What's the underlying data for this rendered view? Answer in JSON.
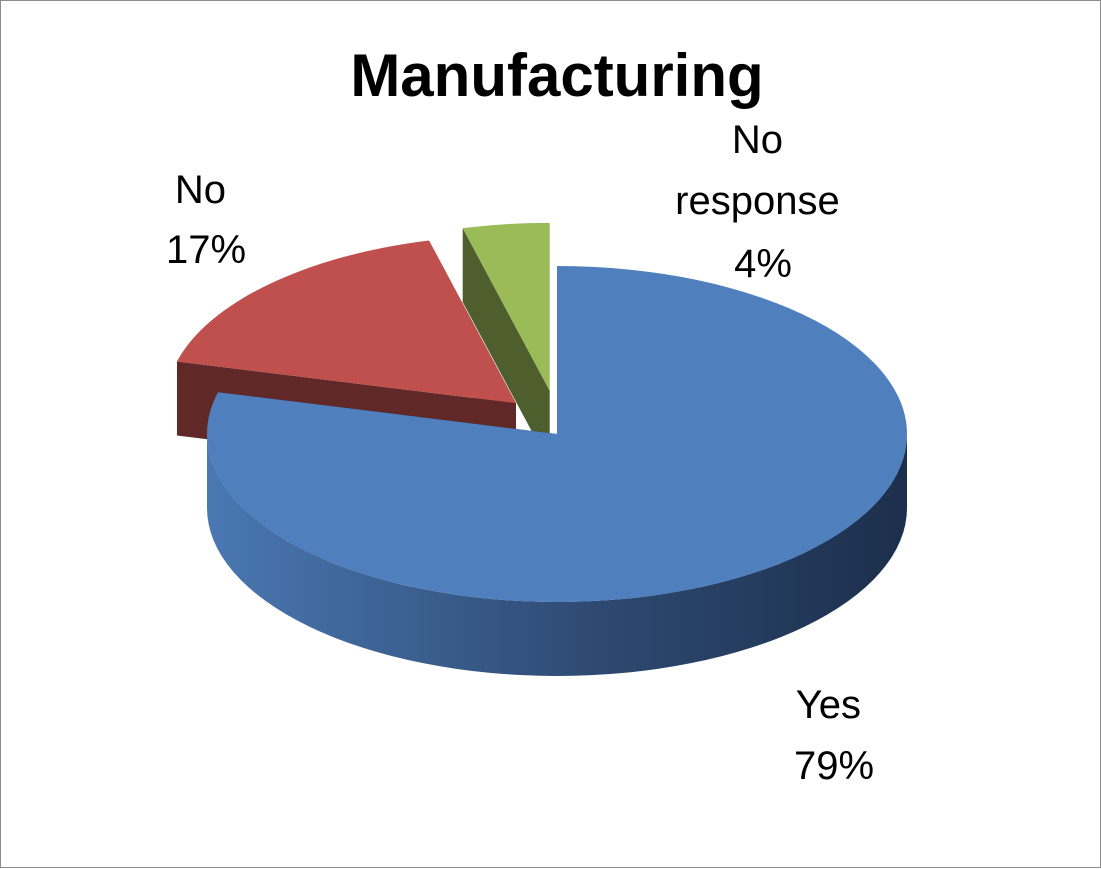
{
  "chart_data": {
    "type": "pie",
    "title": "Manufacturing",
    "slices": [
      {
        "label": "Yes",
        "value": 79,
        "percent_label": "79%",
        "color": "#4f7fbd",
        "exploded": false
      },
      {
        "label": "No",
        "value": 17,
        "percent_label": "17%",
        "color": "#c0504d",
        "exploded": true
      },
      {
        "label": "No response",
        "value": 4,
        "percent_label": "4%",
        "color": "#9bbb59",
        "exploded": true
      }
    ],
    "legend": "none",
    "data_labels": "category and percentage"
  }
}
